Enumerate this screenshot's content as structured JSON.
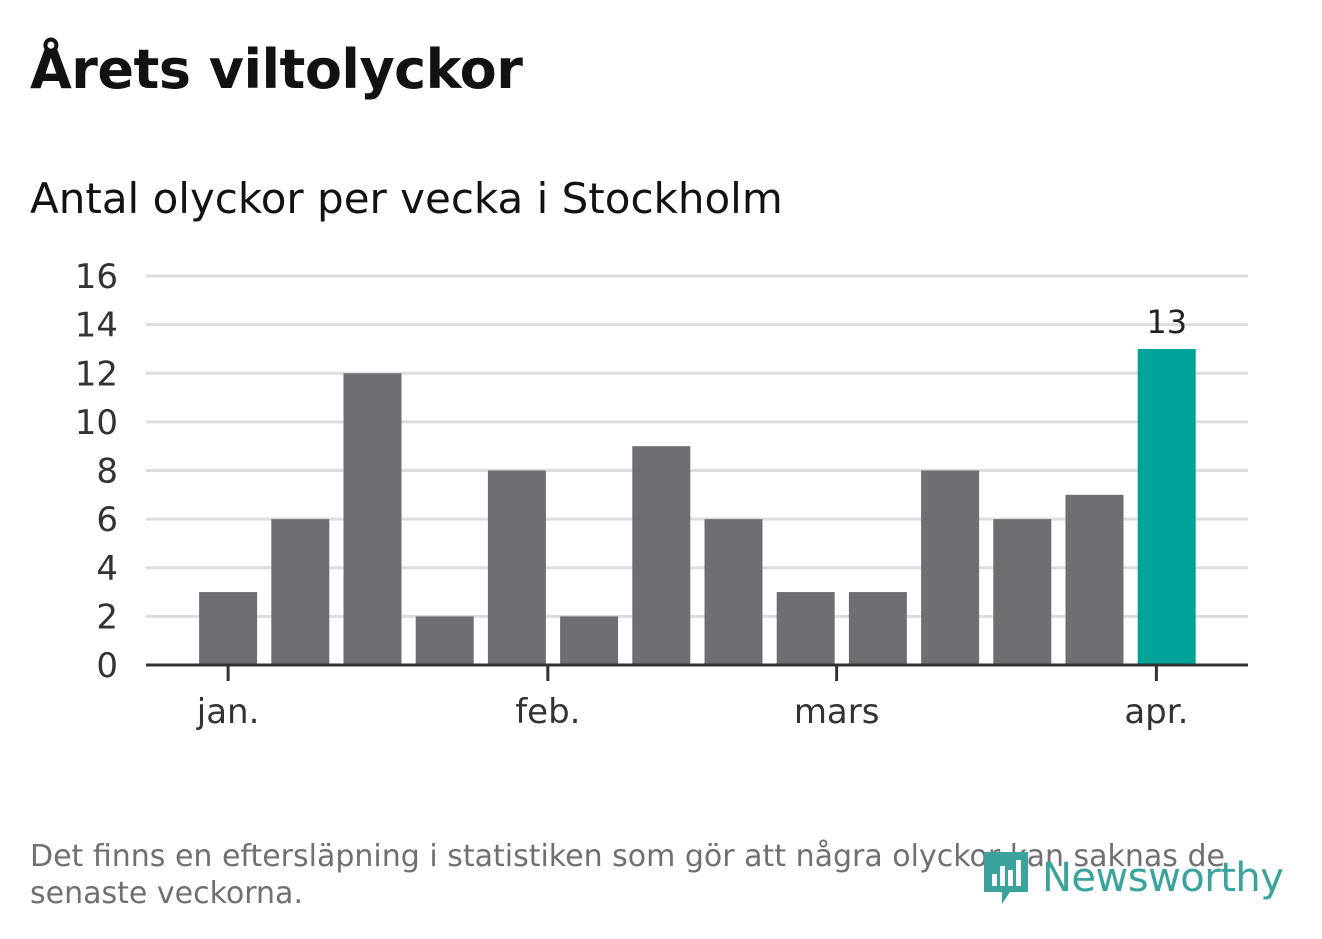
{
  "header": {
    "title": "Årets viltolyckor",
    "subtitle": "Antal olyckor per vecka i Stockholm"
  },
  "footer": {
    "note": "Det finns en eftersläpning i statistiken som gör att några olyckor kan saknas de senaste veckorna.",
    "brand": "Newsworthy",
    "brand_icon": "newsworthy-logo-icon"
  },
  "colors": {
    "bar": "#6f6e73",
    "highlight": "#00a39a",
    "grid": "#dddddd",
    "axis": "#333333",
    "text": "#333333",
    "brand": "#3aa39b"
  },
  "chart_data": {
    "type": "bar",
    "title": "Antal olyckor per vecka i Stockholm",
    "xlabel": "",
    "ylabel": "",
    "weeks": [
      "2019-01-01",
      "2019-01-08",
      "2019-01-15",
      "2019-01-22",
      "2019-01-29",
      "2019-02-05",
      "2019-02-12",
      "2019-02-19",
      "2019-02-26",
      "2019-03-05",
      "2019-03-12",
      "2019-03-19",
      "2019-03-26",
      "2019-04-02"
    ],
    "values": [
      3,
      6,
      12,
      2,
      8,
      2,
      9,
      6,
      3,
      3,
      8,
      6,
      7,
      13
    ],
    "highlight_index": 13,
    "data_labels": [
      "13"
    ],
    "ylim": [
      0,
      16
    ],
    "yticks": [
      0,
      2,
      4,
      6,
      8,
      10,
      12,
      14,
      16
    ],
    "xticks": [
      {
        "label": "jan.",
        "week": "2019-01-01"
      },
      {
        "label": "feb.",
        "week": "2019-02-01"
      },
      {
        "label": "mars",
        "week": "2019-03-01"
      },
      {
        "label": "apr.",
        "week": "2019-04-01"
      }
    ],
    "grid": true,
    "legend": "none"
  }
}
